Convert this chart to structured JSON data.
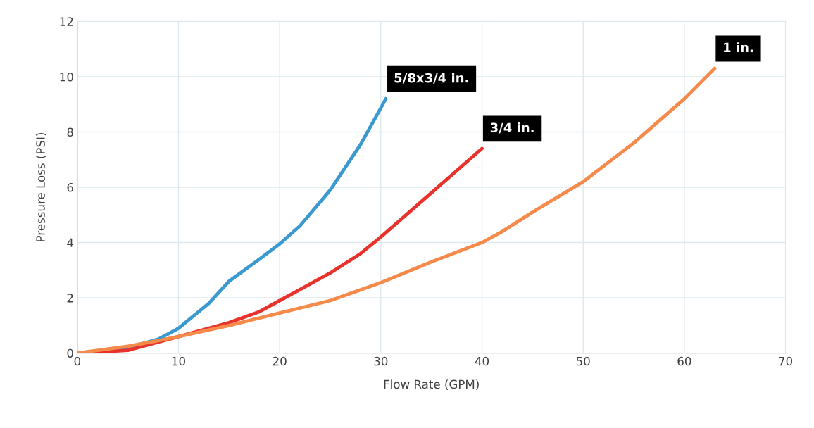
{
  "chart_data": {
    "type": "line",
    "xlabel": "Flow Rate (GPM)",
    "ylabel": "Pressure Loss (PSI)",
    "xlim": [
      0,
      70
    ],
    "xticks": [
      0,
      10,
      20,
      30,
      40,
      50,
      60,
      70
    ],
    "ylim": [
      0,
      12
    ],
    "yticks": [
      0,
      2,
      4,
      6,
      8,
      10,
      12
    ],
    "grid": true,
    "legend": false,
    "marker": "none",
    "line_style": "solid",
    "series": [
      {
        "name": "5/8x3/4 in.",
        "color": "#3a9ad0",
        "x": [
          0,
          5,
          8,
          10,
          13,
          15,
          18,
          20,
          22,
          25,
          28,
          30.5
        ],
        "values": [
          0,
          0.2,
          0.5,
          0.9,
          1.8,
          2.6,
          3.4,
          3.95,
          4.6,
          5.9,
          7.55,
          9.2
        ]
      },
      {
        "name": "3/4 in.",
        "color": "#e8332c",
        "x": [
          0,
          5,
          8,
          10,
          15,
          18,
          20,
          22,
          25,
          28,
          30,
          35,
          40
        ],
        "values": [
          0,
          0.1,
          0.4,
          0.6,
          1.1,
          1.5,
          1.9,
          2.3,
          2.9,
          3.6,
          4.2,
          5.8,
          7.4
        ]
      },
      {
        "name": "1 in.",
        "color": "#f58a4b",
        "x": [
          0,
          5,
          8,
          10,
          15,
          20,
          25,
          30,
          35,
          40,
          42,
          45,
          50,
          55,
          60,
          63
        ],
        "values": [
          0,
          0.25,
          0.45,
          0.6,
          1.0,
          1.45,
          1.9,
          2.55,
          3.3,
          4.0,
          4.4,
          5.1,
          6.2,
          7.6,
          9.2,
          10.3
        ]
      }
    ]
  }
}
